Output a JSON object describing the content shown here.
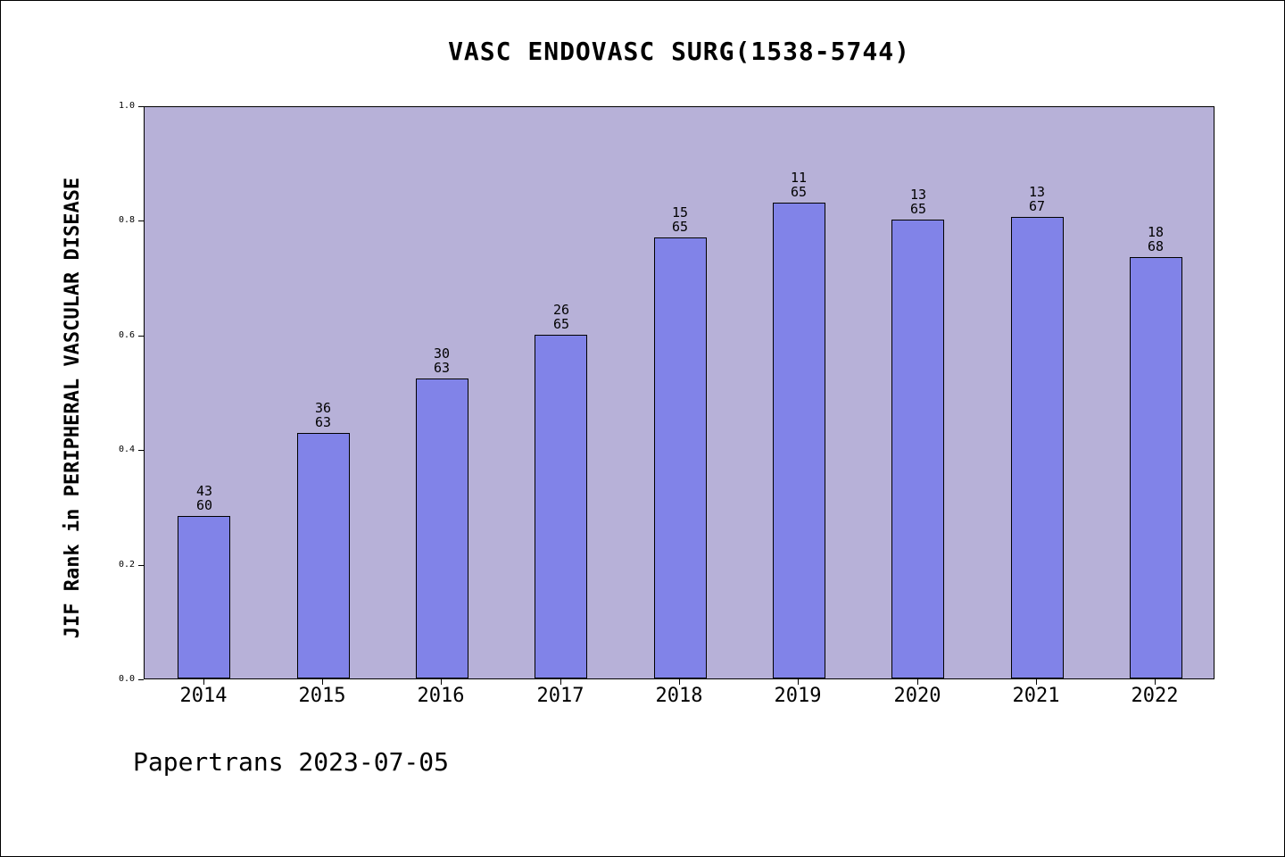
{
  "title": "VASC ENDOVASC SURG(1538-5744)",
  "footer": "Papertrans 2023-07-05",
  "colors": {
    "plot_bg": "#b7b1d8",
    "bar_fill": "#8183e8",
    "bar_edge": "#000000"
  },
  "chart_data": {
    "type": "bar",
    "title": "VASC ENDOVASC SURG(1538-5744)",
    "xlabel": "",
    "ylabel": "JIF Rank in PERIPHERAL VASCULAR DISEASE",
    "categories": [
      "2014",
      "2015",
      "2016",
      "2017",
      "2018",
      "2019",
      "2020",
      "2021",
      "2022"
    ],
    "values": [
      0.2833,
      0.4286,
      0.5238,
      0.6,
      0.7692,
      0.8308,
      0.8,
      0.806,
      0.7353
    ],
    "bar_labels": [
      [
        "43",
        "60"
      ],
      [
        "36",
        "63"
      ],
      [
        "30",
        "63"
      ],
      [
        "26",
        "65"
      ],
      [
        "15",
        "65"
      ],
      [
        "11",
        "65"
      ],
      [
        "13",
        "65"
      ],
      [
        "13",
        "67"
      ],
      [
        "18",
        "68"
      ]
    ],
    "ylim": [
      0.0,
      1.0
    ],
    "yticks": [
      "0.0",
      "0.2",
      "0.4",
      "0.6",
      "0.8",
      "1.0"
    ],
    "grid": false,
    "legend": "none",
    "annotation_meaning": "top number = JIF rank, bottom number = total journals in category; bar height = (total-rank)/total"
  }
}
